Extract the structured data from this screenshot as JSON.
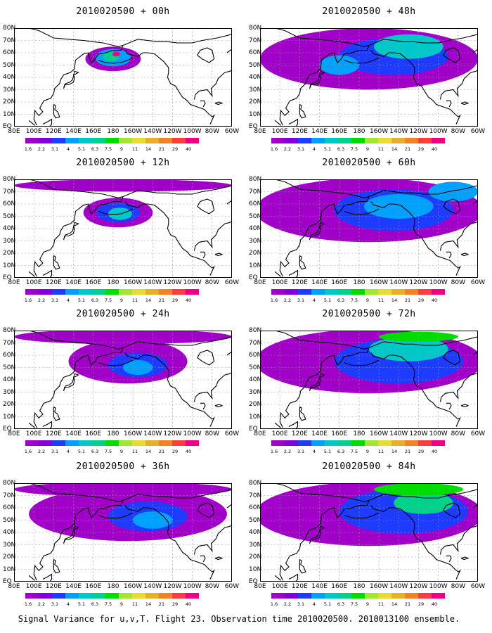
{
  "footer": "Signal Variance for u,v,T. Flight 23. Observation time 2010020500. 2010013100 ensemble.",
  "panels": [
    {
      "title": "2010020500 + 00h"
    },
    {
      "title": "2010020500 + 48h"
    },
    {
      "title": "2010020500 + 12h"
    },
    {
      "title": "2010020500 + 60h"
    },
    {
      "title": "2010020500 + 24h"
    },
    {
      "title": "2010020500 + 72h"
    },
    {
      "title": "2010020500 + 36h"
    },
    {
      "title": "2010020500 + 84h"
    }
  ],
  "lat_labels": [
    "80N",
    "70N",
    "60N",
    "50N",
    "40N",
    "30N",
    "20N",
    "10N",
    "EQ"
  ],
  "lon_labels": [
    "80E",
    "100E",
    "120E",
    "140E",
    "160E",
    "180",
    "160W",
    "140W",
    "120W",
    "100W",
    "80W",
    "60W"
  ],
  "colorbar": {
    "labels": [
      "1.6",
      "2.2",
      "3.1",
      "4",
      "5.1",
      "6.3",
      "7.5",
      "9",
      "11",
      "14",
      "21",
      "29",
      "40"
    ],
    "colors": [
      "#a000c8",
      "#8200dc",
      "#1e3cff",
      "#00a0ff",
      "#00c8c8",
      "#00d28c",
      "#00dc00",
      "#a0e632",
      "#e6dc32",
      "#e6af2d",
      "#f08228",
      "#fa3c3c",
      "#f00082"
    ]
  },
  "chart_data": {
    "type": "heatmap",
    "description_series": "Signal variance maps over North Pacific, 80E-60W, EQ-80N, forecast hours 00-84",
    "levels": [
      1.6,
      2.2,
      3.1,
      4,
      5.1,
      6.3,
      7.5,
      9,
      11,
      14,
      21,
      29,
      40
    ],
    "forecast_hours": [
      "00h",
      "12h",
      "24h",
      "36h",
      "48h",
      "60h",
      "72h",
      "84h"
    ]
  }
}
